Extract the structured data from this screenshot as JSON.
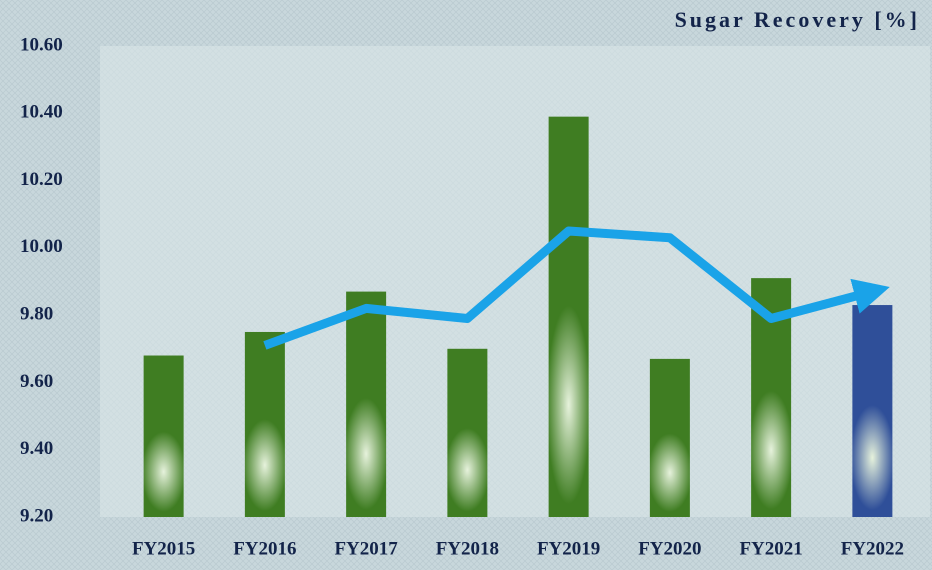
{
  "chart_data": {
    "type": "bar_line",
    "title": "Sugar Recovery [%]",
    "categories": [
      "FY2015",
      "FY2016",
      "FY2017",
      "FY2018",
      "FY2019",
      "FY2020",
      "FY2021",
      "FY2022"
    ],
    "values": [
      9.68,
      9.75,
      9.87,
      9.7,
      10.39,
      9.67,
      9.91,
      9.83
    ],
    "bar_colors": [
      "#3f7d22",
      "#3f7d22",
      "#3f7d22",
      "#3f7d22",
      "#3f7d22",
      "#3f7d22",
      "#3f7d22",
      "#2f4f99"
    ],
    "line_values": [
      null,
      9.71,
      9.82,
      9.79,
      10.05,
      10.03,
      9.79,
      9.87
    ],
    "line_color": "#1aa3e8",
    "ylim": [
      9.2,
      10.6
    ],
    "yticks": [
      {
        "value": 9.2,
        "label": "9.20"
      },
      {
        "value": 9.4,
        "label": "9.40"
      },
      {
        "value": 9.6,
        "label": "9.60"
      },
      {
        "value": 9.8,
        "label": "9.80"
      },
      {
        "value": 10.0,
        "label": "10.00"
      },
      {
        "value": 10.2,
        "label": "10.20"
      },
      {
        "value": 10.4,
        "label": "10.40"
      },
      {
        "value": 10.6,
        "label": "10.60"
      }
    ]
  }
}
